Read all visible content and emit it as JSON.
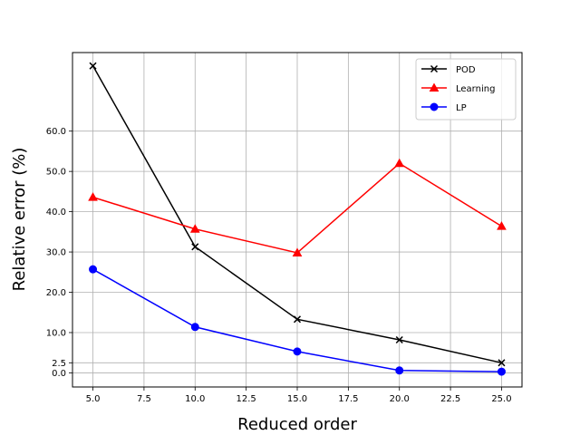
{
  "chart_data": {
    "type": "line",
    "xlabel": "Reduced order",
    "ylabel": "Relative error (%)",
    "xlim": [
      4.0,
      26.0
    ],
    "ylim": [
      -3.5,
      79.5
    ],
    "xticks": [
      5.0,
      7.5,
      10.0,
      12.5,
      15.0,
      17.5,
      20.0,
      22.5,
      25.0
    ],
    "xtick_labels": [
      "5.0",
      "7.5",
      "10.0",
      "12.5",
      "15.0",
      "17.5",
      "20.0",
      "22.5",
      "25.0"
    ],
    "yticks": [
      0.0,
      2.5,
      10.0,
      20.0,
      30.0,
      40.0,
      50.0,
      60.0
    ],
    "ytick_labels": [
      "0.0",
      "2.5",
      "10.0",
      "20.0",
      "30.0",
      "40.0",
      "50.0",
      "60.0"
    ],
    "grid": true,
    "legend_position": "top-right",
    "series": [
      {
        "name": "POD",
        "color": "#000000",
        "marker": "x",
        "x": [
          5,
          10,
          15,
          20,
          25
        ],
        "y": [
          76.2,
          31.3,
          13.3,
          8.2,
          2.5
        ]
      },
      {
        "name": "Learning",
        "color": "#ff0000",
        "marker": "triangle",
        "x": [
          5,
          10,
          15,
          20,
          25
        ],
        "y": [
          43.6,
          35.7,
          29.8,
          52.0,
          36.4
        ]
      },
      {
        "name": "LP",
        "color": "#0000ff",
        "marker": "circle",
        "x": [
          5,
          10,
          15,
          20,
          25
        ],
        "y": [
          25.7,
          11.4,
          5.3,
          0.6,
          0.3
        ]
      }
    ]
  }
}
